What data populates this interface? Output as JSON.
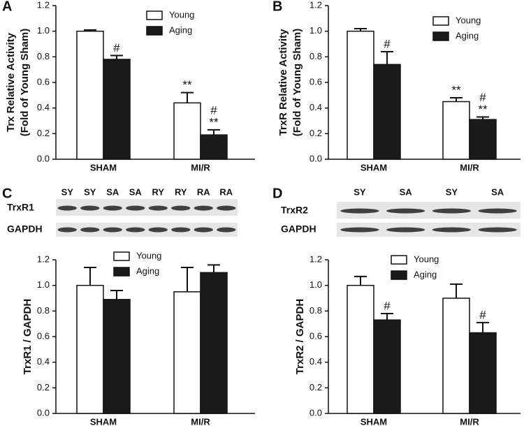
{
  "chart_data": [
    {
      "type": "bar",
      "panel": "A",
      "ylabel": [
        "Trx Relative Activity",
        "(Fold of Young Sham)"
      ],
      "categories": [
        "SHAM",
        "MI/R"
      ],
      "ylim": [
        0,
        1.2
      ],
      "yticks": [
        {
          "value": 0,
          "label": "0.0"
        },
        0.2,
        0.4,
        0.6,
        0.8,
        {
          "value": 1,
          "label": "1.0"
        },
        1.2
      ],
      "series": [
        {
          "name": "Young",
          "color": "#ffffff",
          "values": [
            1.0,
            0.44
          ],
          "errors": [
            0.01,
            0.08
          ],
          "significance": [
            [],
            [
              "**"
            ]
          ]
        },
        {
          "name": "Aging",
          "color": "#1a1a1a",
          "values": [
            0.78,
            0.19
          ],
          "errors": [
            0.03,
            0.04
          ],
          "significance": [
            [
              "#"
            ],
            [
              "#",
              "**"
            ]
          ]
        }
      ]
    },
    {
      "type": "bar",
      "panel": "B",
      "ylabel": [
        "TrxR Relative Activity",
        "(Fold of Young Sham)"
      ],
      "categories": [
        "SHAM",
        "MI/R"
      ],
      "ylim": [
        0,
        1.2
      ],
      "yticks": [
        {
          "value": 0,
          "label": "0.0"
        },
        0.2,
        0.4,
        0.6,
        0.8,
        {
          "value": 1,
          "label": "1.0"
        },
        1.2
      ],
      "series": [
        {
          "name": "Young",
          "color": "#ffffff",
          "values": [
            1.0,
            0.45
          ],
          "errors": [
            0.02,
            0.03
          ],
          "significance": [
            [],
            [
              "**"
            ]
          ]
        },
        {
          "name": "Aging",
          "color": "#1a1a1a",
          "values": [
            0.74,
            0.31
          ],
          "errors": [
            0.1,
            0.02
          ],
          "significance": [
            [
              "#"
            ],
            [
              "#",
              "**"
            ]
          ]
        }
      ]
    },
    {
      "type": "bar",
      "panel": "C",
      "ylabel": [
        "TrxR1 / GAPDH"
      ],
      "blot": {
        "lanes": [
          "SY",
          "SY",
          "SA",
          "SA",
          "RY",
          "RY",
          "RA",
          "RA"
        ],
        "rows": [
          "TrxR1",
          "GAPDH"
        ]
      },
      "categories": [
        "SHAM",
        "MI/R"
      ],
      "ylim": [
        0,
        1.2
      ],
      "yticks": [
        {
          "value": 0,
          "label": "0.0"
        },
        0.2,
        0.4,
        0.6,
        0.8,
        {
          "value": 1,
          "label": "1.0"
        },
        1.2
      ],
      "series": [
        {
          "name": "Young",
          "color": "#ffffff",
          "values": [
            1.0,
            0.95
          ],
          "errors": [
            0.14,
            0.19
          ],
          "significance": [
            [],
            []
          ]
        },
        {
          "name": "Aging",
          "color": "#1a1a1a",
          "values": [
            0.89,
            1.1
          ],
          "errors": [
            0.07,
            0.06
          ],
          "significance": [
            [],
            []
          ]
        }
      ]
    },
    {
      "type": "bar",
      "panel": "D",
      "ylabel": [
        "TrxR2 / GAPDH"
      ],
      "blot": {
        "lanes": [
          "SY",
          "SA",
          "SY",
          "SA"
        ],
        "rows": [
          "TrxR2",
          "GAPDH"
        ]
      },
      "categories": [
        "SHAM",
        "MI/R"
      ],
      "ylim": [
        0,
        1.2
      ],
      "yticks": [
        {
          "value": 0,
          "label": "0.0"
        },
        0.2,
        0.4,
        0.6,
        0.8,
        {
          "value": 1,
          "label": "1.0"
        },
        1.2
      ],
      "series": [
        {
          "name": "Young",
          "color": "#ffffff",
          "values": [
            1.0,
            0.9
          ],
          "errors": [
            0.07,
            0.11
          ],
          "significance": [
            [],
            []
          ]
        },
        {
          "name": "Aging",
          "color": "#1a1a1a",
          "values": [
            0.73,
            0.63
          ],
          "errors": [
            0.05,
            0.08
          ],
          "significance": [
            [
              "#"
            ],
            [
              "#"
            ]
          ]
        }
      ]
    }
  ]
}
